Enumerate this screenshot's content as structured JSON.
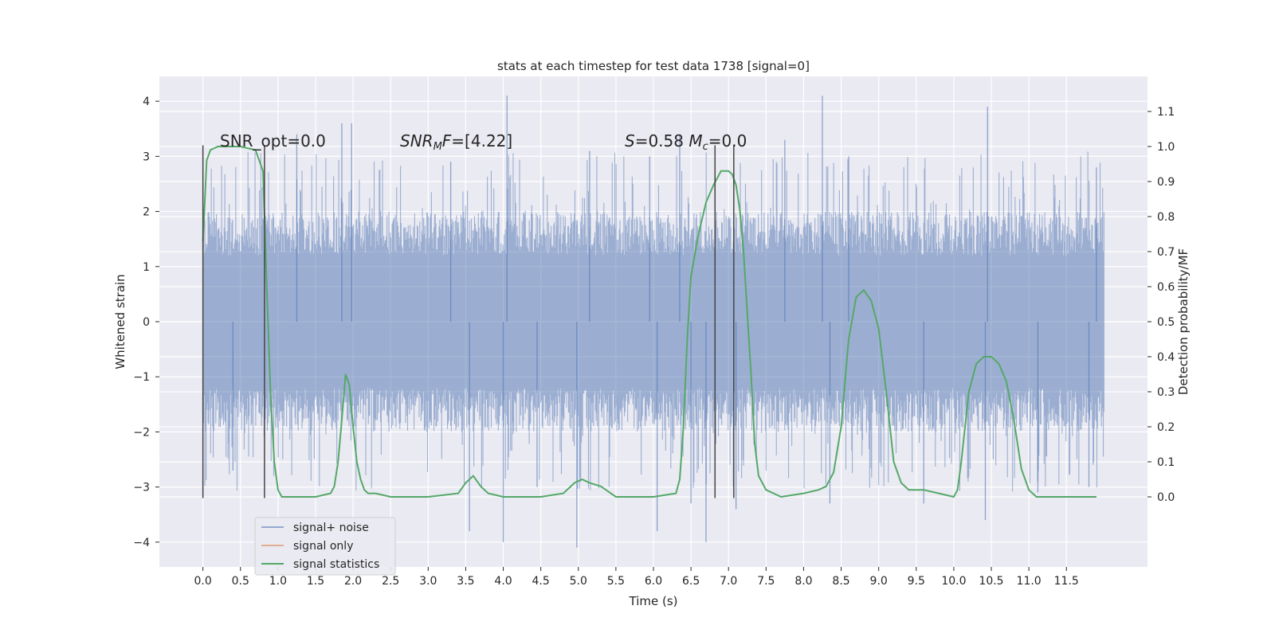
{
  "chart_data": {
    "type": "line",
    "title": "stats at each timestep for test data 1738 [signal=0]",
    "xlabel": "Time (s)",
    "ylabel": "Whitened strain",
    "ylabel_right": "Detection probability/MF",
    "xlim": [
      -0.58,
      12.58
    ],
    "ylim": [
      -4.45,
      4.45
    ],
    "ylim_right": [
      -0.2,
      1.2
    ],
    "x_ticks": [
      "0.0",
      "0.5",
      "1.0",
      "1.5",
      "2.0",
      "2.5",
      "3.0",
      "3.5",
      "4.0",
      "4.5",
      "5.0",
      "5.5",
      "6.0",
      "6.5",
      "7.0",
      "7.5",
      "8.0",
      "8.5",
      "9.0",
      "9.5",
      "10.0",
      "10.5",
      "11.0",
      "11.5"
    ],
    "y_ticks": [
      4,
      3,
      2,
      1,
      0,
      -1,
      -2,
      -3,
      -4
    ],
    "y_tick_labels": [
      "4",
      "3",
      "2",
      "1",
      "0",
      "−1",
      "−2",
      "−3",
      "−4"
    ],
    "y_ticks_right": [
      "1.1",
      "1.0",
      "0.9",
      "0.8",
      "0.7",
      "0.6",
      "0.5",
      "0.4",
      "0.3",
      "0.2",
      "0.1",
      "0.0"
    ],
    "grid": true,
    "legend_placement": "lower-left",
    "annotations": [
      {
        "text": "SNR_opt=0.0",
        "x": 0.2,
        "y": 3.25
      },
      {
        "text": "SNR_MF=[4.22]",
        "x": 2.6,
        "y": 3.25
      },
      {
        "text": "S=0.58   Mc=0.0",
        "x": 5.6,
        "y": 3.25
      }
    ],
    "vertical_lines": [
      {
        "x": 0.0,
        "y": [
          -3.2,
          3.2
        ]
      },
      {
        "x": 0.82,
        "y": [
          -3.2,
          3.2
        ]
      },
      {
        "x": 6.82,
        "y": [
          -3.2,
          3.2
        ]
      },
      {
        "x": 7.07,
        "y": [
          -3.2,
          3.2
        ]
      }
    ],
    "noise": {
      "x_range": [
        0.0,
        12.0
      ],
      "typical_range": [
        -2.0,
        2.0
      ],
      "extremes": [
        {
          "x": 0.4,
          "y": -2.7
        },
        {
          "x": 1.25,
          "y": 3.4
        },
        {
          "x": 1.85,
          "y": 3.6
        },
        {
          "x": 1.98,
          "y": 3.6
        },
        {
          "x": 3.3,
          "y": 2.9
        },
        {
          "x": 3.55,
          "y": -3.8
        },
        {
          "x": 4.0,
          "y": -4.0
        },
        {
          "x": 4.05,
          "y": 4.1
        },
        {
          "x": 4.45,
          "y": -3.0
        },
        {
          "x": 4.98,
          "y": -4.1
        },
        {
          "x": 5.15,
          "y": 3.1
        },
        {
          "x": 5.95,
          "y": 3.0
        },
        {
          "x": 6.05,
          "y": -3.8
        },
        {
          "x": 6.35,
          "y": 3.4
        },
        {
          "x": 6.5,
          "y": -3.3
        },
        {
          "x": 6.7,
          "y": -4.0
        },
        {
          "x": 7.1,
          "y": -3.4
        },
        {
          "x": 7.75,
          "y": 3.3
        },
        {
          "x": 8.25,
          "y": 4.1
        },
        {
          "x": 8.35,
          "y": -3.3
        },
        {
          "x": 8.6,
          "y": 3.0
        },
        {
          "x": 9.6,
          "y": -3.3
        },
        {
          "x": 10.42,
          "y": -3.6
        },
        {
          "x": 10.45,
          "y": 3.9
        },
        {
          "x": 11.12,
          "y": -3.1
        },
        {
          "x": 11.8,
          "y": -3.0
        },
        {
          "x": 11.9,
          "y": 2.8
        }
      ]
    },
    "series": [
      {
        "name": "signal+ noise",
        "color": "#4c72b0",
        "style": "noise band"
      },
      {
        "name": "signal only",
        "color": "#dd8452",
        "values": []
      },
      {
        "name": "signal statistics",
        "color": "#55a868",
        "axis": "right",
        "x": [
          0.0,
          0.02,
          0.05,
          0.1,
          0.2,
          0.3,
          0.5,
          0.7,
          0.75,
          0.8,
          0.82,
          0.85,
          0.9,
          0.95,
          1.0,
          1.05,
          1.1,
          1.2,
          1.5,
          1.7,
          1.75,
          1.8,
          1.85,
          1.9,
          1.95,
          2.0,
          2.05,
          2.1,
          2.15,
          2.2,
          2.3,
          2.5,
          3.0,
          3.4,
          3.5,
          3.6,
          3.7,
          3.8,
          4.0,
          4.5,
          4.8,
          4.95,
          5.05,
          5.15,
          5.3,
          5.5,
          6.0,
          6.3,
          6.35,
          6.4,
          6.45,
          6.5,
          6.55,
          6.6,
          6.7,
          6.8,
          6.9,
          7.0,
          7.05,
          7.1,
          7.15,
          7.2,
          7.3,
          7.35,
          7.4,
          7.5,
          7.7,
          8.0,
          8.2,
          8.3,
          8.4,
          8.5,
          8.6,
          8.7,
          8.8,
          8.9,
          9.0,
          9.1,
          9.2,
          9.3,
          9.4,
          9.6,
          9.8,
          10.0,
          10.05,
          10.1,
          10.2,
          10.3,
          10.4,
          10.5,
          10.6,
          10.7,
          10.8,
          10.9,
          11.0,
          11.1,
          11.3,
          11.5,
          11.9
        ],
        "values": [
          0.73,
          0.82,
          0.96,
          0.99,
          1.0,
          1.0,
          1.0,
          0.99,
          0.96,
          0.93,
          0.8,
          0.6,
          0.3,
          0.1,
          0.02,
          0.0,
          0.0,
          0.0,
          0.0,
          0.01,
          0.03,
          0.1,
          0.22,
          0.35,
          0.32,
          0.2,
          0.1,
          0.05,
          0.02,
          0.01,
          0.01,
          0.0,
          0.0,
          0.01,
          0.04,
          0.06,
          0.03,
          0.01,
          0.0,
          0.0,
          0.01,
          0.04,
          0.05,
          0.04,
          0.03,
          0.0,
          0.0,
          0.01,
          0.05,
          0.2,
          0.45,
          0.63,
          0.69,
          0.75,
          0.84,
          0.89,
          0.93,
          0.93,
          0.92,
          0.89,
          0.82,
          0.7,
          0.35,
          0.15,
          0.06,
          0.02,
          0.0,
          0.01,
          0.02,
          0.03,
          0.07,
          0.2,
          0.45,
          0.57,
          0.59,
          0.56,
          0.48,
          0.3,
          0.1,
          0.04,
          0.02,
          0.02,
          0.01,
          0.0,
          0.02,
          0.1,
          0.3,
          0.38,
          0.4,
          0.4,
          0.38,
          0.33,
          0.22,
          0.08,
          0.02,
          0.0,
          0.0,
          0.0,
          0.0
        ]
      }
    ]
  }
}
